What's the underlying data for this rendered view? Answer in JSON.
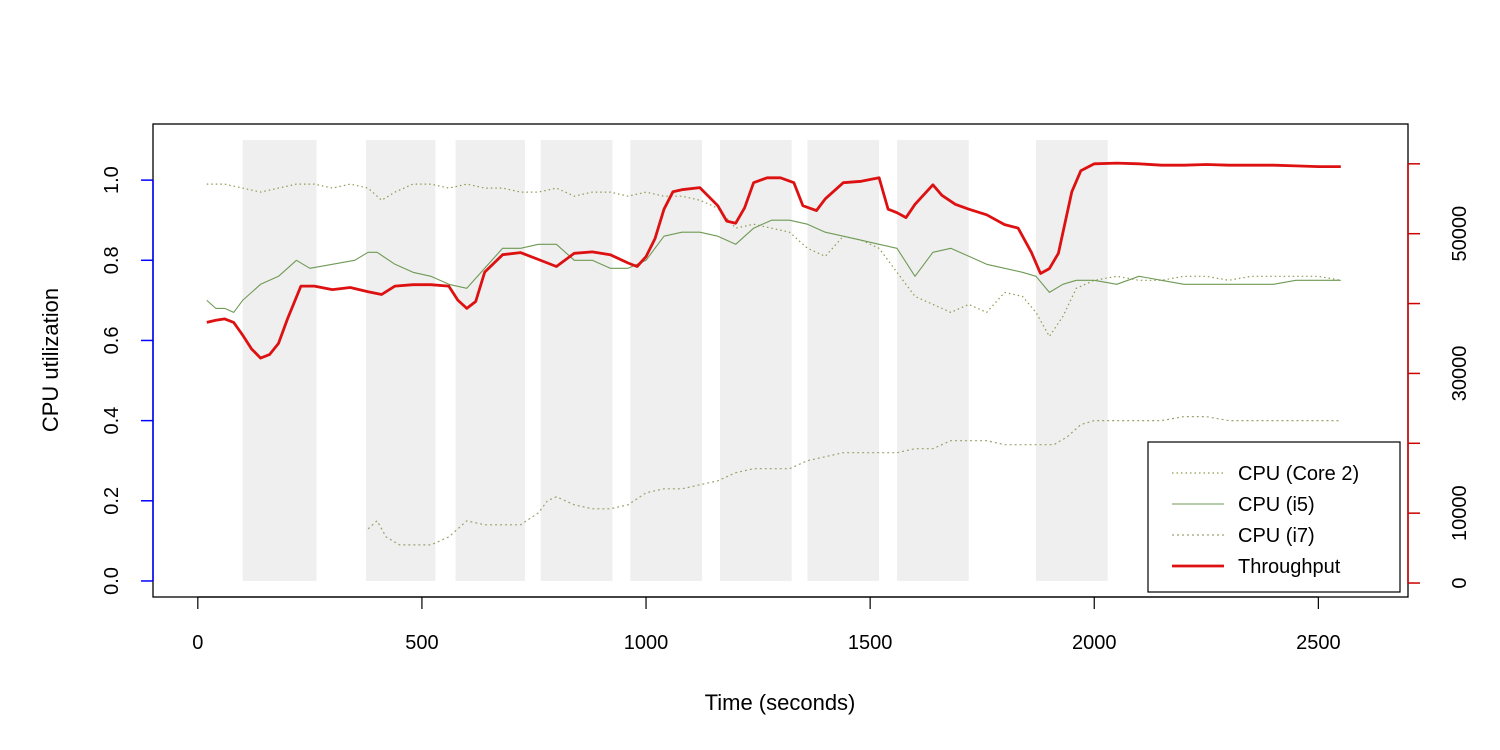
{
  "chart_data": {
    "type": "line",
    "xlabel": "Time (seconds)",
    "ylabel": "CPU utilization",
    "xlim": [
      -100,
      2700
    ],
    "ylim": [
      -0.04,
      1.14
    ],
    "y2lim": [
      -2000,
      65700
    ],
    "x_ticks": [
      0,
      500,
      1000,
      1500,
      2000,
      2500
    ],
    "y_ticks": [
      0.0,
      0.2,
      0.4,
      0.6,
      0.8,
      1.0
    ],
    "y_tick_labels": [
      "0.0",
      "0.2",
      "0.4",
      "0.6",
      "0.8",
      "1.0"
    ],
    "y2_ticks": [
      0,
      10000,
      20000,
      30000,
      40000,
      50000,
      60000
    ],
    "y2_tick_labels": [
      "0",
      "10000",
      "",
      "30000",
      "",
      "50000",
      ""
    ],
    "left_axis_color": "#0000ff",
    "right_axis_color": "#cc0000",
    "shaded_intervals": [
      [
        100,
        265
      ],
      [
        375,
        530
      ],
      [
        575,
        730
      ],
      [
        765,
        925
      ],
      [
        965,
        1125
      ],
      [
        1165,
        1325
      ],
      [
        1360,
        1520
      ],
      [
        1560,
        1720
      ],
      [
        1870,
        2030
      ]
    ],
    "legend_position": "bottom-right",
    "series": [
      {
        "name": "CPU (Core 2)",
        "axis": "left",
        "color": "#8d9a4e",
        "style": "dotted",
        "x": [
          20,
          60,
          100,
          140,
          180,
          220,
          260,
          300,
          340,
          380,
          410,
          440,
          480,
          520,
          560,
          600,
          640,
          680,
          720,
          760,
          800,
          840,
          880,
          920,
          960,
          1000,
          1040,
          1080,
          1120,
          1160,
          1200,
          1240,
          1280,
          1320,
          1360,
          1400,
          1440,
          1480,
          1520,
          1560,
          1600,
          1640,
          1680,
          1720,
          1760,
          1800,
          1840,
          1870,
          1900,
          1930,
          1960,
          2000,
          2050,
          2100,
          2150,
          2200,
          2250,
          2300,
          2350,
          2400,
          2450,
          2500,
          2550
        ],
        "y": [
          0.99,
          0.99,
          0.98,
          0.97,
          0.98,
          0.99,
          0.99,
          0.98,
          0.99,
          0.98,
          0.95,
          0.97,
          0.99,
          0.99,
          0.98,
          0.99,
          0.98,
          0.98,
          0.97,
          0.97,
          0.98,
          0.96,
          0.97,
          0.97,
          0.96,
          0.97,
          0.96,
          0.96,
          0.95,
          0.93,
          0.88,
          0.89,
          0.88,
          0.87,
          0.83,
          0.81,
          0.86,
          0.85,
          0.83,
          0.77,
          0.71,
          0.69,
          0.67,
          0.69,
          0.67,
          0.72,
          0.71,
          0.67,
          0.61,
          0.66,
          0.73,
          0.75,
          0.76,
          0.75,
          0.75,
          0.76,
          0.76,
          0.75,
          0.76,
          0.76,
          0.76,
          0.76,
          0.75
        ]
      },
      {
        "name": "CPU (i5)",
        "axis": "left",
        "color": "#6f9a55",
        "style": "solid",
        "x": [
          20,
          40,
          60,
          80,
          100,
          140,
          180,
          200,
          220,
          250,
          300,
          350,
          380,
          400,
          440,
          480,
          520,
          560,
          600,
          640,
          680,
          720,
          760,
          800,
          840,
          880,
          920,
          960,
          1000,
          1040,
          1080,
          1120,
          1160,
          1200,
          1240,
          1280,
          1320,
          1360,
          1400,
          1440,
          1480,
          1520,
          1560,
          1600,
          1640,
          1680,
          1720,
          1760,
          1800,
          1840,
          1870,
          1900,
          1930,
          1960,
          2000,
          2050,
          2100,
          2150,
          2200,
          2250,
          2300,
          2350,
          2400,
          2450,
          2500,
          2550
        ],
        "y": [
          0.7,
          0.68,
          0.68,
          0.67,
          0.7,
          0.74,
          0.76,
          0.78,
          0.8,
          0.78,
          0.79,
          0.8,
          0.82,
          0.82,
          0.79,
          0.77,
          0.76,
          0.74,
          0.73,
          0.78,
          0.83,
          0.83,
          0.84,
          0.84,
          0.8,
          0.8,
          0.78,
          0.78,
          0.8,
          0.86,
          0.87,
          0.87,
          0.86,
          0.84,
          0.88,
          0.9,
          0.9,
          0.89,
          0.87,
          0.86,
          0.85,
          0.84,
          0.83,
          0.76,
          0.82,
          0.83,
          0.81,
          0.79,
          0.78,
          0.77,
          0.76,
          0.72,
          0.74,
          0.75,
          0.75,
          0.74,
          0.76,
          0.75,
          0.74,
          0.74,
          0.74,
          0.74,
          0.74,
          0.75,
          0.75,
          0.75
        ]
      },
      {
        "name": "CPU (i7)",
        "axis": "left",
        "color": "#a0a070",
        "style": "dashed",
        "x": [
          380,
          400,
          420,
          450,
          480,
          520,
          560,
          600,
          640,
          680,
          720,
          760,
          780,
          800,
          840,
          880,
          920,
          960,
          1000,
          1040,
          1080,
          1120,
          1160,
          1200,
          1240,
          1280,
          1320,
          1360,
          1400,
          1440,
          1480,
          1520,
          1560,
          1600,
          1640,
          1680,
          1720,
          1760,
          1800,
          1840,
          1880,
          1910,
          1940,
          1970,
          2000,
          2050,
          2100,
          2150,
          2200,
          2250,
          2300,
          2350,
          2400,
          2450,
          2500,
          2550
        ],
        "y": [
          0.13,
          0.15,
          0.11,
          0.09,
          0.09,
          0.09,
          0.11,
          0.15,
          0.14,
          0.14,
          0.14,
          0.17,
          0.2,
          0.21,
          0.19,
          0.18,
          0.18,
          0.19,
          0.22,
          0.23,
          0.23,
          0.24,
          0.25,
          0.27,
          0.28,
          0.28,
          0.28,
          0.3,
          0.31,
          0.32,
          0.32,
          0.32,
          0.32,
          0.33,
          0.33,
          0.35,
          0.35,
          0.35,
          0.34,
          0.34,
          0.34,
          0.34,
          0.36,
          0.39,
          0.4,
          0.4,
          0.4,
          0.4,
          0.41,
          0.41,
          0.4,
          0.4,
          0.4,
          0.4,
          0.4,
          0.4
        ]
      },
      {
        "name": "Throughput",
        "axis": "right",
        "color": "#dd1111",
        "style": "solid-thick",
        "x": [
          20,
          40,
          60,
          80,
          100,
          120,
          140,
          160,
          180,
          200,
          230,
          260,
          300,
          340,
          380,
          410,
          440,
          480,
          520,
          560,
          580,
          600,
          620,
          640,
          680,
          720,
          760,
          800,
          840,
          880,
          920,
          960,
          980,
          1000,
          1020,
          1040,
          1060,
          1080,
          1120,
          1160,
          1180,
          1200,
          1220,
          1240,
          1270,
          1300,
          1330,
          1350,
          1380,
          1400,
          1440,
          1480,
          1520,
          1540,
          1560,
          1580,
          1600,
          1640,
          1660,
          1690,
          1720,
          1760,
          1800,
          1830,
          1860,
          1880,
          1900,
          1920,
          1950,
          1970,
          2000,
          2050,
          2100,
          2150,
          2200,
          2250,
          2300,
          2350,
          2400,
          2450,
          2500,
          2550
        ],
        "y": [
          37300,
          37600,
          37800,
          37300,
          35500,
          33500,
          32200,
          32700,
          34300,
          37800,
          42500,
          42500,
          42000,
          42300,
          41700,
          41300,
          42500,
          42700,
          42700,
          42500,
          40500,
          39300,
          40300,
          44500,
          47000,
          47300,
          46300,
          45300,
          47200,
          47400,
          47000,
          45800,
          45300,
          46700,
          49300,
          53500,
          56000,
          56300,
          56600,
          54000,
          51800,
          51500,
          53700,
          57300,
          58000,
          58000,
          57300,
          54000,
          53300,
          55000,
          57300,
          57500,
          58000,
          53500,
          53000,
          52300,
          54200,
          57000,
          55500,
          54200,
          53500,
          52700,
          51300,
          50800,
          47300,
          44300,
          45000,
          47200,
          56000,
          59000,
          60000,
          60100,
          60000,
          59800,
          59800,
          59900,
          59800,
          59800,
          59800,
          59700,
          59600,
          59600
        ]
      }
    ]
  }
}
